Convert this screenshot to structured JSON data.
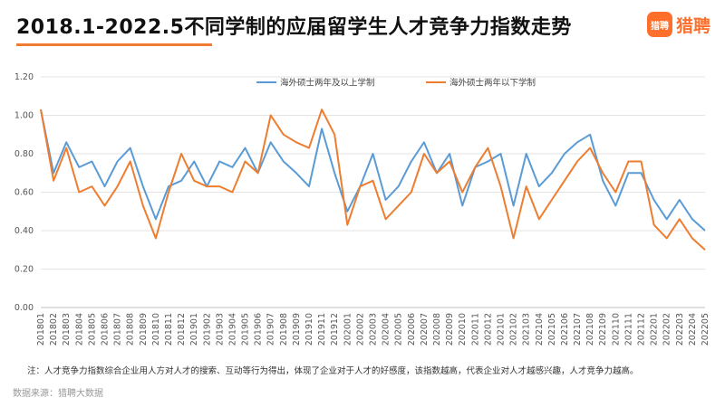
{
  "header": {
    "title": "2018.1-2022.5不同学制的应届留学生人才竞争力指数走势",
    "logo_mark": "猎聘",
    "logo_text": "猎聘"
  },
  "footer": {
    "note": "注：人才竞争力指数综合企业用人方对人才的搜索、互动等行为得出，体现了企业对于人才的好感度，该指数越高，代表企业对人才越感兴趣，人才竞争力越高。",
    "source": "数据来源：猎聘大数据"
  },
  "chart_data": {
    "type": "line",
    "title": "2018.1-2022.5不同学制的应届留学生人才竞争力指数走势",
    "xlabel": "",
    "ylabel": "",
    "ylim": [
      0,
      1.2
    ],
    "yticks": [
      "0.00",
      "0.20",
      "0.40",
      "0.60",
      "0.80",
      "1.00",
      "1.20"
    ],
    "grid": "horizontal",
    "legend_position": "top",
    "categories": [
      "201801",
      "201802",
      "201803",
      "201804",
      "201805",
      "201806",
      "201807",
      "201808",
      "201809",
      "201810",
      "201811",
      "201812",
      "201901",
      "201902",
      "201903",
      "201904",
      "201905",
      "201906",
      "201907",
      "201908",
      "201909",
      "201910",
      "201911",
      "201912",
      "202001",
      "202002",
      "202003",
      "202004",
      "202005",
      "202006",
      "202007",
      "202008",
      "202009",
      "202010",
      "202011",
      "202012",
      "202101",
      "202102",
      "202103",
      "202104",
      "202105",
      "202106",
      "202107",
      "202108",
      "202109",
      "202110",
      "202111",
      "202112",
      "202201",
      "202202",
      "202203",
      "202204",
      "202205"
    ],
    "series": [
      {
        "name": "海外硕士两年及以上学制",
        "color": "#5b9bd5",
        "values": [
          1.03,
          0.7,
          0.86,
          0.73,
          0.76,
          0.63,
          0.76,
          0.83,
          0.63,
          0.46,
          0.63,
          0.66,
          0.76,
          0.63,
          0.76,
          0.73,
          0.83,
          0.7,
          0.86,
          0.76,
          0.7,
          0.63,
          0.93,
          0.7,
          0.5,
          0.63,
          0.8,
          0.56,
          0.63,
          0.76,
          0.86,
          0.7,
          0.8,
          0.53,
          0.73,
          0.76,
          0.8,
          0.53,
          0.8,
          0.63,
          0.7,
          0.8,
          0.86,
          0.9,
          0.66,
          0.53,
          0.7,
          0.7,
          0.56,
          0.46,
          0.56,
          0.46,
          0.4
        ]
      },
      {
        "name": "海外硕士两年以下学制",
        "color": "#ed7d31",
        "values": [
          1.03,
          0.66,
          0.83,
          0.6,
          0.63,
          0.53,
          0.63,
          0.76,
          0.53,
          0.36,
          0.6,
          0.8,
          0.66,
          0.63,
          0.63,
          0.6,
          0.76,
          0.7,
          1.0,
          0.9,
          0.86,
          0.83,
          1.03,
          0.9,
          0.43,
          0.63,
          0.66,
          0.46,
          0.53,
          0.6,
          0.8,
          0.7,
          0.76,
          0.6,
          0.73,
          0.83,
          0.63,
          0.36,
          0.63,
          0.46,
          0.56,
          0.66,
          0.76,
          0.83,
          0.7,
          0.6,
          0.76,
          0.76,
          0.43,
          0.36,
          0.46,
          0.36,
          0.3
        ]
      }
    ]
  }
}
